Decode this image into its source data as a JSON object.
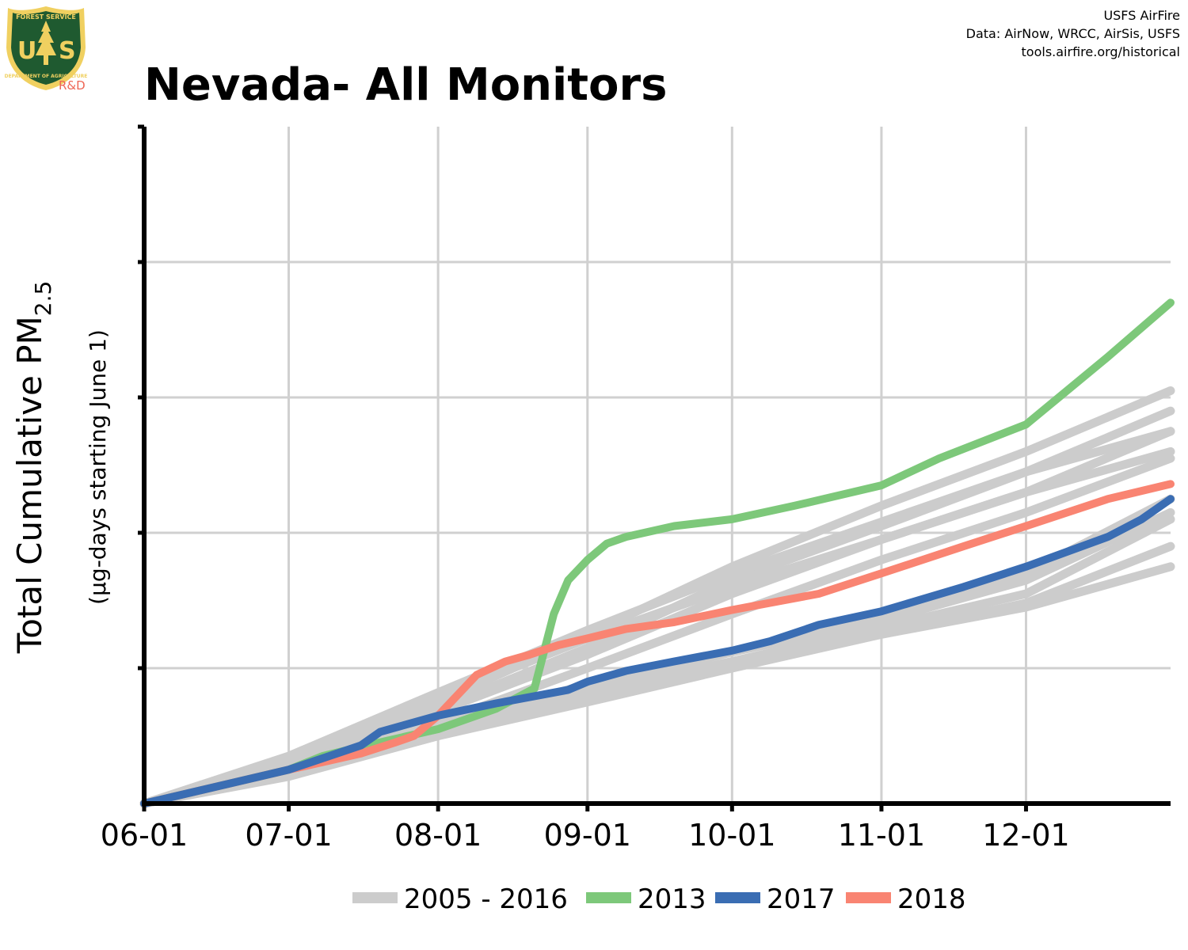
{
  "logo": {
    "letters": "USFS",
    "top_text": "FOREST SERVICE",
    "bottom_text": "DEPARTMENT OF AGRICULTURE",
    "rd": "R&D"
  },
  "credits": [
    "USFS AirFire",
    "Data: AirNow, WRCC, AirSis, USFS",
    "tools.airfire.org/historical"
  ],
  "colors": {
    "historical": "#cccccc",
    "y2013": "#7dc87a",
    "y2017": "#3a6db3",
    "y2018": "#f98472",
    "grid": "#d0d0d0",
    "axis": "#000000"
  },
  "chart_data": {
    "type": "line",
    "title": "Nevada- All Monitors",
    "ylabel": "Total Cumulative PM",
    "ylabel_sub": "2.5",
    "ylabel_note": "(µg-days starting June 1)",
    "x_ticks": [
      "06-01",
      "07-01",
      "08-01",
      "09-01",
      "10-01",
      "11-01",
      "12-01"
    ],
    "x_tick_days": [
      0,
      30,
      61,
      92,
      122,
      153,
      183
    ],
    "xlim": [
      0,
      213
    ],
    "ylim": [
      0,
      5
    ],
    "y_tick_count": 5,
    "y_ticks_labeled": false,
    "legend": {
      "position": "bottom",
      "entries": [
        "2005 - 2016",
        "2013",
        "2017",
        "2018"
      ]
    },
    "series": [
      {
        "name": "2005 - 2016",
        "group": "historical",
        "x": [
          0,
          30,
          61,
          92,
          122,
          153,
          183,
          213
        ],
        "y": [
          0,
          0.3,
          0.75,
          1.25,
          1.75,
          2.2,
          2.6,
          3.05
        ]
      },
      {
        "group": "historical",
        "x": [
          0,
          30,
          61,
          92,
          122,
          153,
          183,
          213
        ],
        "y": [
          0,
          0.28,
          0.7,
          1.15,
          1.65,
          2.05,
          2.45,
          2.9
        ]
      },
      {
        "group": "historical",
        "x": [
          0,
          30,
          61,
          92,
          122,
          153,
          183,
          213
        ],
        "y": [
          0,
          0.27,
          0.68,
          1.1,
          1.55,
          1.95,
          2.3,
          2.75
        ]
      },
      {
        "group": "historical",
        "x": [
          0,
          30,
          61,
          92,
          122,
          153,
          183,
          213
        ],
        "y": [
          0,
          0.25,
          0.6,
          1.0,
          1.4,
          1.8,
          2.15,
          2.55
        ]
      },
      {
        "group": "historical",
        "x": [
          0,
          30,
          61,
          92,
          122,
          153,
          183,
          213
        ],
        "y": [
          0,
          0.35,
          0.82,
          1.28,
          1.7,
          2.08,
          2.45,
          2.75
        ]
      },
      {
        "group": "historical",
        "x": [
          0,
          30,
          61,
          92,
          122,
          153,
          183,
          213
        ],
        "y": [
          0,
          0.32,
          0.78,
          1.22,
          1.6,
          1.95,
          2.3,
          2.6
        ]
      },
      {
        "group": "historical",
        "x": [
          0,
          30,
          61,
          92,
          122,
          153,
          183,
          213
        ],
        "y": [
          0,
          0.22,
          0.55,
          0.85,
          1.12,
          1.4,
          1.7,
          2.25
        ]
      },
      {
        "group": "historical",
        "x": [
          0,
          30,
          61,
          92,
          122,
          153,
          183,
          213
        ],
        "y": [
          0,
          0.2,
          0.5,
          0.75,
          1.0,
          1.25,
          1.45,
          1.75
        ]
      },
      {
        "group": "historical",
        "x": [
          0,
          30,
          61,
          92,
          122,
          153,
          183,
          213
        ],
        "y": [
          0,
          0.22,
          0.52,
          0.82,
          1.05,
          1.3,
          1.55,
          2.1
        ]
      },
      {
        "group": "historical",
        "x": [
          0,
          30,
          61,
          92,
          122,
          153,
          183,
          213
        ],
        "y": [
          0,
          0.21,
          0.5,
          0.8,
          1.02,
          1.25,
          1.48,
          1.9
        ]
      },
      {
        "group": "historical",
        "x": [
          0,
          30,
          61,
          92,
          122,
          153,
          183,
          213
        ],
        "y": [
          0,
          0.23,
          0.58,
          0.88,
          1.12,
          1.35,
          1.65,
          2.15
        ]
      },
      {
        "name": "2013",
        "group": "y2013",
        "x": [
          0,
          30,
          37,
          45,
          61,
          73,
          81,
          85,
          88,
          92,
          96,
          100,
          110,
          122,
          135,
          153,
          165,
          183,
          200,
          213
        ],
        "y": [
          0,
          0.25,
          0.35,
          0.42,
          0.55,
          0.7,
          0.85,
          1.4,
          1.65,
          1.8,
          1.92,
          1.97,
          2.05,
          2.1,
          2.2,
          2.35,
          2.55,
          2.8,
          3.3,
          3.7
        ]
      },
      {
        "name": "2017",
        "group": "y2017",
        "x": [
          0,
          30,
          45,
          49,
          61,
          73,
          88,
          92,
          100,
          110,
          122,
          130,
          140,
          153,
          170,
          183,
          200,
          207,
          213
        ],
        "y": [
          0,
          0.25,
          0.43,
          0.53,
          0.65,
          0.74,
          0.84,
          0.9,
          0.98,
          1.05,
          1.13,
          1.2,
          1.32,
          1.42,
          1.6,
          1.75,
          1.97,
          2.1,
          2.25
        ]
      },
      {
        "name": "2018",
        "group": "y2018",
        "x": [
          0,
          30,
          45,
          52,
          56,
          61,
          65,
          69,
          75,
          80,
          86,
          92,
          100,
          110,
          122,
          140,
          153,
          170,
          183,
          200,
          213
        ],
        "y": [
          0,
          0.25,
          0.37,
          0.45,
          0.5,
          0.65,
          0.8,
          0.95,
          1.05,
          1.1,
          1.17,
          1.22,
          1.29,
          1.34,
          1.43,
          1.55,
          1.7,
          1.9,
          2.05,
          2.25,
          2.36
        ]
      }
    ]
  }
}
